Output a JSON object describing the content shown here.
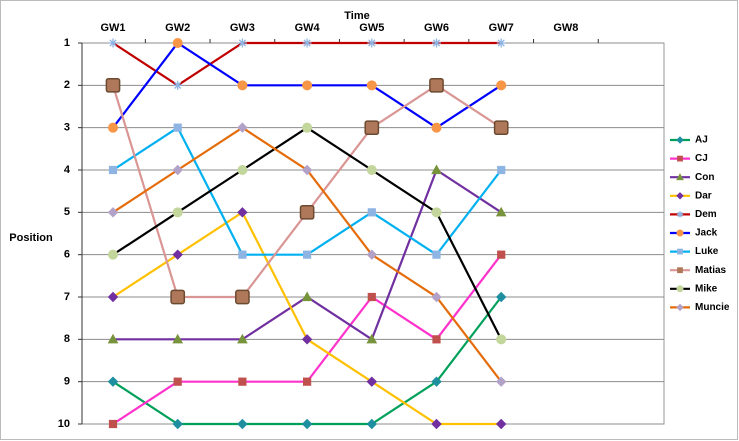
{
  "chart_data": {
    "type": "line",
    "x_label": "Time",
    "y_label": "Position",
    "categories": [
      "GW1",
      "GW2",
      "GW3",
      "GW4",
      "GW5",
      "GW6",
      "GW7",
      "GW8"
    ],
    "ylim": [
      10,
      1
    ],
    "yticks": [
      1,
      2,
      3,
      4,
      5,
      6,
      7,
      8,
      9,
      10
    ],
    "grid": true,
    "legend": "right",
    "series": [
      {
        "name": "AJ",
        "color": "#00a05a",
        "marker": "diamond",
        "marker_color": "#1f8fa0",
        "values": [
          9,
          10,
          10,
          10,
          10,
          9,
          7,
          null
        ]
      },
      {
        "name": "CJ",
        "color": "#ff33cc",
        "marker": "square",
        "marker_color": "#c0504d",
        "values": [
          10,
          9,
          9,
          9,
          7,
          8,
          6,
          null
        ]
      },
      {
        "name": "Con",
        "color": "#7030a0",
        "marker": "triangle",
        "marker_color": "#77933c",
        "values": [
          8,
          8,
          8,
          7,
          8,
          4,
          5,
          null
        ]
      },
      {
        "name": "Dar",
        "color": "#ffc000",
        "marker": "diamond",
        "marker_color": "#7030a0",
        "values": [
          7,
          6,
          5,
          8,
          9,
          10,
          10,
          null
        ]
      },
      {
        "name": "Dem",
        "color": "#c00000",
        "marker": "star",
        "marker_color": "#8eb4e3",
        "values": [
          1,
          2,
          1,
          1,
          1,
          1,
          1,
          null
        ]
      },
      {
        "name": "Jack",
        "color": "#0000ff",
        "marker": "circle",
        "marker_color": "#f79646",
        "values": [
          3,
          1,
          2,
          2,
          2,
          3,
          2,
          null
        ]
      },
      {
        "name": "Luke",
        "color": "#00b0f0",
        "marker": "square",
        "marker_color": "#8eb4e3",
        "values": [
          4,
          3,
          6,
          6,
          5,
          6,
          4,
          null
        ]
      },
      {
        "name": "Matias",
        "color": "#d99694",
        "marker": "photo",
        "marker_color": "#b0785a",
        "values": [
          2,
          7,
          7,
          5,
          3,
          2,
          3,
          null
        ]
      },
      {
        "name": "Mike",
        "color": "#000000",
        "marker": "circle",
        "marker_color": "#c3d69b",
        "values": [
          6,
          5,
          4,
          3,
          4,
          5,
          8,
          null
        ]
      },
      {
        "name": "Muncie",
        "color": "#e46c0a",
        "marker": "diamond",
        "marker_color": "#b3a2c7",
        "values": [
          5,
          4,
          3,
          4,
          6,
          7,
          9,
          null
        ]
      }
    ]
  }
}
